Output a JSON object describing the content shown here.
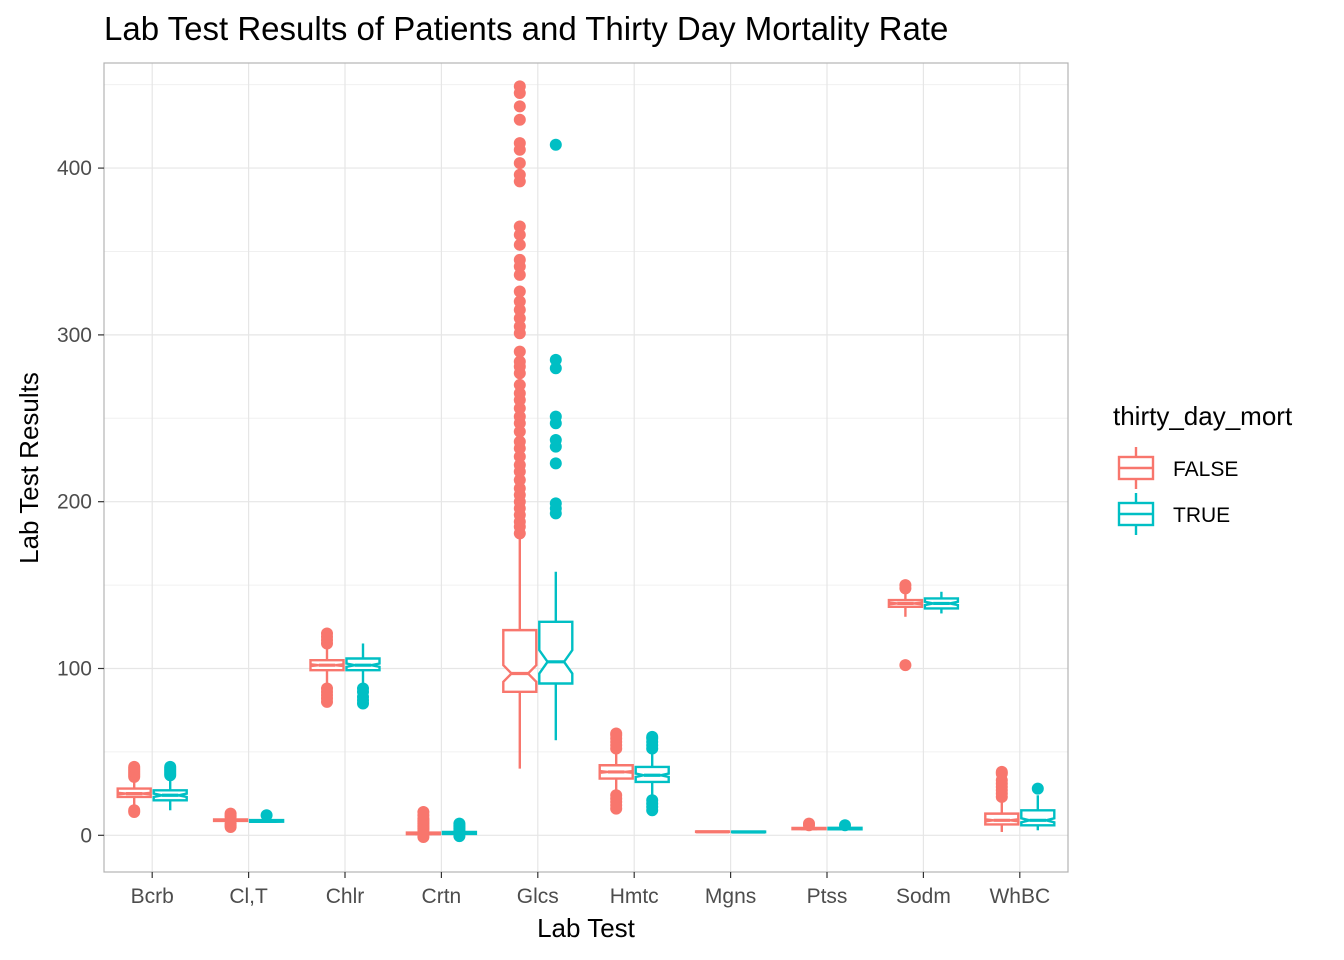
{
  "chart_data": {
    "type": "boxplot",
    "notched": true,
    "title": "Lab Test Results of Patients and Thirty Day Mortality Rate",
    "xlabel": "Lab Test",
    "ylabel": "Lab Test Results",
    "ylim": [
      -22,
      463
    ],
    "yticks": [
      0,
      100,
      200,
      300,
      400
    ],
    "grid": true,
    "legend": {
      "title": "thirty_day_mort",
      "placement": "right",
      "entries": [
        "FALSE",
        "TRUE"
      ]
    },
    "categories": [
      "Bcrb",
      "Cl,T",
      "Chlr",
      "Crtn",
      "Glcs",
      "Hmtc",
      "Mgns",
      "Ptss",
      "Sodm",
      "WhBC"
    ],
    "series": [
      {
        "name": "FALSE",
        "color": "#F8766D",
        "boxes": [
          {
            "min": 18,
            "q1": 23,
            "median": 25,
            "q3": 28,
            "max": 33,
            "notch": [
              24.5,
              25.5
            ],
            "outliers": [
              14,
              15,
              35,
              36,
              37,
              38,
              39,
              40,
              41
            ]
          },
          {
            "min": 8,
            "q1": 8.6,
            "median": 9.0,
            "q3": 9.5,
            "max": 10.3,
            "notch": [
              8.9,
              9.1
            ],
            "outliers": [
              5,
              6,
              7,
              11,
              12,
              13
            ]
          },
          {
            "min": 89,
            "q1": 99,
            "median": 102,
            "q3": 105,
            "max": 113,
            "notch": [
              101.5,
              102.5
            ],
            "outliers": [
              80,
              82,
              84,
              86,
              88,
              115,
              117,
              119,
              121
            ]
          },
          {
            "min": 0.3,
            "q1": 0.7,
            "median": 1.0,
            "q3": 1.6,
            "max": 2.8,
            "notch": [
              0.9,
              1.1
            ],
            "outliers": [
              -1,
              1,
              3,
              4,
              5,
              6,
              7,
              8,
              9,
              10,
              12,
              14
            ]
          },
          {
            "min": 40,
            "q1": 86,
            "median": 97,
            "q3": 123,
            "max": 178,
            "notch": [
              92,
              102
            ],
            "outliers": [
              181,
              185,
              188,
              192,
              196,
              200,
              204,
              208,
              213,
              218,
              222,
              227,
              232,
              236,
              242,
              247,
              251,
              256,
              261,
              265,
              270,
              277,
              281,
              284,
              290,
              301,
              305,
              310,
              315,
              320,
              326,
              336,
              341,
              345,
              354,
              360,
              365,
              392,
              396,
              403,
              411,
              415,
              429,
              437,
              445,
              449
            ]
          },
          {
            "min": 27,
            "q1": 34,
            "median": 38,
            "q3": 42,
            "max": 50,
            "notch": [
              37.5,
              38.5
            ],
            "outliers": [
              16,
              18,
              20,
              22,
              24,
              52,
              54,
              56,
              58,
              60,
              61
            ]
          },
          {
            "min": 1.6,
            "q1": 2.0,
            "median": 2.1,
            "q3": 2.3,
            "max": 2.7
          },
          {
            "min": 3.0,
            "q1": 3.7,
            "median": 4.0,
            "q3": 4.4,
            "max": 5.2,
            "notch": [
              3.9,
              4.1
            ],
            "outliers": [
              6,
              7
            ]
          },
          {
            "min": 131,
            "q1": 137,
            "median": 139,
            "q3": 141,
            "max": 146,
            "notch": [
              138.5,
              139.5
            ],
            "outliers": [
              102,
              148,
              150
            ]
          },
          {
            "min": 2,
            "q1": 6.5,
            "median": 9,
            "q3": 13,
            "max": 22,
            "notch": [
              8.4,
              9.6
            ],
            "outliers": [
              23,
              25,
              27,
              29,
              31,
              33,
              37,
              38
            ]
          }
        ]
      },
      {
        "name": "TRUE",
        "color": "#00BFC4",
        "boxes": [
          {
            "min": 15,
            "q1": 21,
            "median": 24,
            "q3": 27,
            "max": 33,
            "notch": [
              23,
              25
            ],
            "outliers": [
              36,
              37,
              38,
              39,
              40,
              41
            ]
          },
          {
            "min": 7.5,
            "q1": 8.1,
            "median": 8.6,
            "q3": 9.1,
            "max": 10.0,
            "notch": [
              8.5,
              8.7
            ],
            "outliers": [
              12
            ]
          },
          {
            "min": 90,
            "q1": 99,
            "median": 102,
            "q3": 106,
            "max": 115,
            "notch": [
              101,
              103
            ],
            "outliers": [
              79,
              81,
              83,
              86,
              88
            ]
          },
          {
            "min": 0.3,
            "q1": 0.8,
            "median": 1.2,
            "q3": 2.0,
            "max": 3.2,
            "notch": [
              1.1,
              1.3
            ],
            "outliers": [
              -0.5,
              1,
              2,
              3,
              4,
              5,
              6,
              7
            ]
          },
          {
            "min": 57,
            "q1": 91,
            "median": 104,
            "q3": 128,
            "max": 158,
            "notch": [
              97,
              111
            ],
            "outliers": [
              193,
              196,
              199,
              223,
              233,
              237,
              247,
              251,
              280,
              285,
              414
            ]
          },
          {
            "min": 22,
            "q1": 32,
            "median": 36,
            "q3": 41,
            "max": 50,
            "notch": [
              35,
              37
            ],
            "outliers": [
              15,
              17,
              19,
              21,
              52,
              54,
              56,
              58,
              59
            ]
          },
          {
            "min": 1.5,
            "q1": 1.9,
            "median": 2.0,
            "q3": 2.2,
            "max": 2.7
          },
          {
            "min": 3.0,
            "q1": 3.6,
            "median": 4.0,
            "q3": 4.5,
            "max": 5.3,
            "notch": [
              3.9,
              4.1
            ],
            "outliers": [
              6
            ]
          },
          {
            "min": 133,
            "q1": 136,
            "median": 139,
            "q3": 142,
            "max": 146,
            "notch": [
              138,
              140
            ]
          },
          {
            "min": 3,
            "q1": 6,
            "median": 9,
            "q3": 15,
            "max": 24,
            "notch": [
              7.8,
              10.2
            ],
            "outliers": [
              28
            ]
          }
        ]
      }
    ]
  }
}
